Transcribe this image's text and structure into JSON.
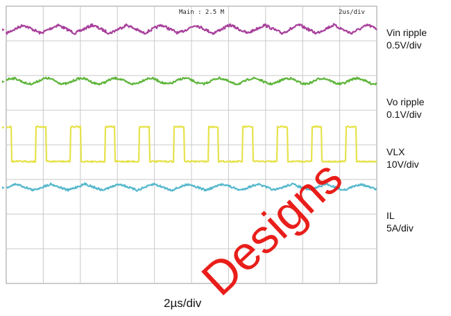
{
  "chart_data": {
    "type": "line",
    "header": {
      "left": "Main : 2.5 M",
      "right": "2us/div"
    },
    "xlabel": "2µs/div",
    "grid": true,
    "divisions": {
      "x": 10,
      "y": 8
    },
    "series": [
      {
        "name": "Vin ripple",
        "scale": "0.5V/div",
        "color": "#a8409c",
        "shape": "triangle",
        "level_div": 0.66,
        "amplitude_div": 0.12,
        "period_div": 0.93,
        "noise": 0.04
      },
      {
        "name": "Vo ripple",
        "scale": "0.1V/div",
        "color": "#5db53a",
        "shape": "sine",
        "level_div": 2.16,
        "amplitude_div": 0.08,
        "period_div": 0.93,
        "noise": 0.03
      },
      {
        "name": "VLX",
        "scale": "10V/div",
        "color": "#e6e24a",
        "shape": "square",
        "level_div": 3.48,
        "low_div": 4.48,
        "period_div": 0.93,
        "duty": 0.3,
        "noise": 0.02
      },
      {
        "name": "IL",
        "scale": "5A/div",
        "color": "#55b8cc",
        "shape": "triangle",
        "level_div": 5.22,
        "amplitude_div": 0.09,
        "period_div": 0.93,
        "noise": 0.03
      }
    ]
  },
  "watermark": "Designs",
  "colors": {
    "grid": "#c8c8c8",
    "frame": "#9a9a9a",
    "watermark": "#e8120e"
  }
}
